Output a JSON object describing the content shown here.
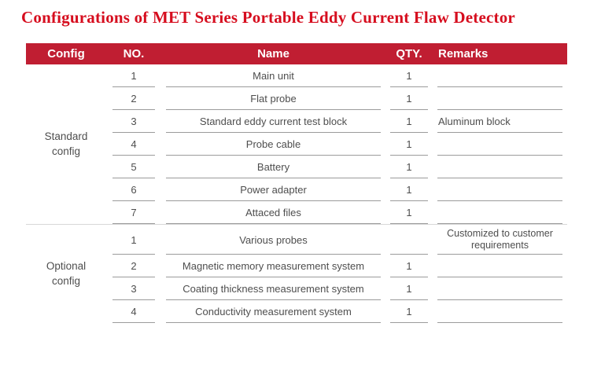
{
  "title": "Configurations of MET Series Portable Eddy Current Flaw Detector",
  "colors": {
    "title_color": "#d60d1e",
    "header_bg": "#c01e32",
    "header_text": "#ffffff",
    "body_text": "#4e4e4e",
    "line_color": "#9b9b9b"
  },
  "table": {
    "headers": {
      "config": "Config",
      "no": "NO.",
      "name": "Name",
      "qty": "QTY.",
      "remarks": "Remarks"
    },
    "groups": [
      {
        "config": "Standard config",
        "rows": [
          {
            "no": "1",
            "name": "Main unit",
            "qty": "1",
            "remarks": ""
          },
          {
            "no": "2",
            "name": "Flat probe",
            "qty": "1",
            "remarks": ""
          },
          {
            "no": "3",
            "name": "Standard eddy current test block",
            "qty": "1",
            "remarks": "Aluminum block"
          },
          {
            "no": "4",
            "name": "Probe cable",
            "qty": "1",
            "remarks": ""
          },
          {
            "no": "5",
            "name": "Battery",
            "qty": "1",
            "remarks": ""
          },
          {
            "no": "6",
            "name": "Power adapter",
            "qty": "1",
            "remarks": ""
          },
          {
            "no": "7",
            "name": "Attaced files",
            "qty": "1",
            "remarks": ""
          }
        ]
      },
      {
        "config": "Optional config",
        "rows": [
          {
            "no": "1",
            "name": "Various probes",
            "qty": "",
            "remarks": "Customized to customer requirements"
          },
          {
            "no": "2",
            "name": "Magnetic memory measurement system",
            "qty": "1",
            "remarks": ""
          },
          {
            "no": "3",
            "name": "Coating thickness measurement system",
            "qty": "1",
            "remarks": ""
          },
          {
            "no": "4",
            "name": "Conductivity measurement system",
            "qty": "1",
            "remarks": ""
          }
        ]
      }
    ]
  }
}
